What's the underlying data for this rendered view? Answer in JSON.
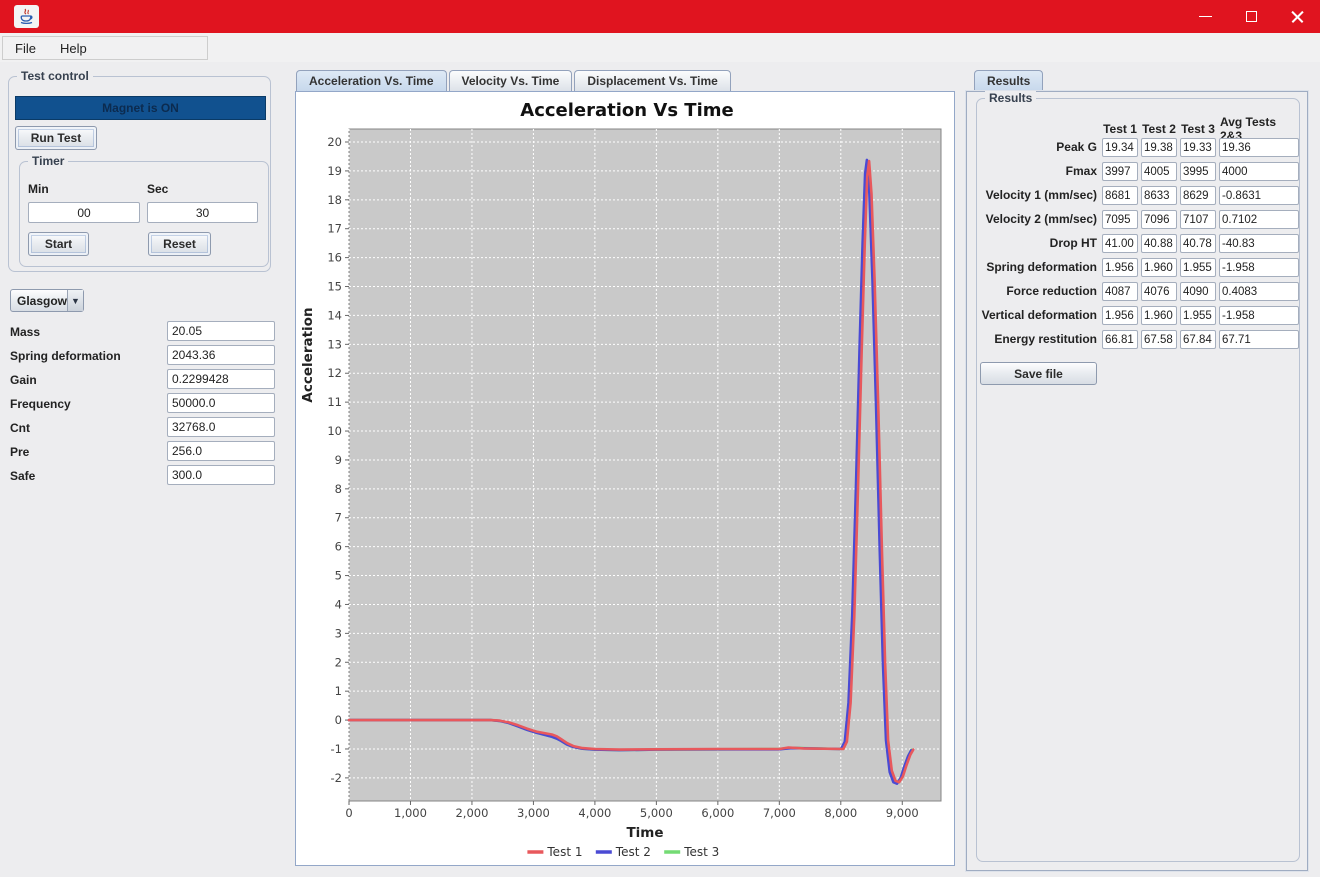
{
  "window": {
    "title": ""
  },
  "menu": {
    "items": [
      "File",
      "Help"
    ]
  },
  "icons": {
    "combo_arrow": "▼"
  },
  "colors": {
    "titlebar_red": "#E0141F",
    "magnet_blue": "#11518F",
    "plot_background": "#C9C9C9",
    "test1_red": "#E8585C",
    "test2_blue": "#4A4AD4",
    "test3_green": "#74DB74"
  },
  "test_control": {
    "title": "Test control",
    "magnet_button": "Magnet is ON",
    "run_test_button": "Run Test",
    "timer": {
      "title": "Timer",
      "min_label": "Min",
      "sec_label": "Sec",
      "min_value": "00",
      "sec_value": "30",
      "start_button": "Start",
      "reset_button": "Reset"
    }
  },
  "settings": {
    "preset_selected": "Glasgow",
    "fields": [
      {
        "label": "Mass",
        "value": "20.05"
      },
      {
        "label": "Spring deformation",
        "value": "2043.36"
      },
      {
        "label": "Gain",
        "value": "0.2299428"
      },
      {
        "label": "Frequency",
        "value": "50000.0"
      },
      {
        "label": "Cnt",
        "value": "32768.0"
      },
      {
        "label": "Pre",
        "value": "256.0"
      },
      {
        "label": "Safe",
        "value": "300.0"
      }
    ]
  },
  "chart_tabs": [
    "Acceleration Vs. Time",
    "Velocity Vs. Time",
    "Displacement Vs. Time"
  ],
  "results": {
    "tab_label": "Results",
    "group_title": "Results",
    "columns": [
      "Test 1",
      "Test 2",
      "Test 3",
      "Avg Tests 2&3"
    ],
    "rows": [
      {
        "label": "Peak G",
        "values": [
          "19.34",
          "19.38",
          "19.33",
          "19.36"
        ]
      },
      {
        "label": "Fmax",
        "values": [
          "3997",
          "4005",
          "3995",
          "4000"
        ]
      },
      {
        "label": "Velocity 1 (mm/sec)",
        "values": [
          "8681",
          "8633",
          "8629",
          "-0.8631"
        ]
      },
      {
        "label": "Velocity 2 (mm/sec)",
        "values": [
          "7095",
          "7096",
          "7107",
          "0.7102"
        ]
      },
      {
        "label": "Drop HT",
        "values": [
          "41.00",
          "40.88",
          "40.78",
          "-40.83"
        ]
      },
      {
        "label": "Spring deformation",
        "values": [
          "1.956",
          "1.960",
          "1.955",
          "-1.958"
        ]
      },
      {
        "label": "Force reduction",
        "values": [
          "4087",
          "4076",
          "4090",
          "0.4083"
        ]
      },
      {
        "label": "Vertical deformation",
        "values": [
          "1.956",
          "1.960",
          "1.955",
          "-1.958"
        ]
      },
      {
        "label": "Energy restitution",
        "values": [
          "66.81",
          "67.58",
          "67.84",
          "67.71"
        ]
      }
    ],
    "save_button": "Save file"
  },
  "chart_data": {
    "type": "line",
    "title": "Acceleration Vs Time",
    "xlabel": "Time",
    "ylabel": "Acceleration",
    "xlim": [
      0,
      9630
    ],
    "ylim": [
      -2.8,
      20.45
    ],
    "grid": true,
    "legend_position": "bottom",
    "plot_bg": "#C9C9C9",
    "x_ticks": [
      {
        "v": 0,
        "label": "0"
      },
      {
        "v": 1000,
        "label": "1,000"
      },
      {
        "v": 2000,
        "label": "2,000"
      },
      {
        "v": 3000,
        "label": "3,000"
      },
      {
        "v": 4000,
        "label": "4,000"
      },
      {
        "v": 5000,
        "label": "5,000"
      },
      {
        "v": 6000,
        "label": "6,000"
      },
      {
        "v": 7000,
        "label": "7,000"
      },
      {
        "v": 8000,
        "label": "8,000"
      },
      {
        "v": 9000,
        "label": "9,000"
      }
    ],
    "y_ticks": [
      {
        "v": -2,
        "label": "-2"
      },
      {
        "v": -1,
        "label": "-1"
      },
      {
        "v": 0,
        "label": "0"
      },
      {
        "v": 1,
        "label": "1"
      },
      {
        "v": 2,
        "label": "2"
      },
      {
        "v": 3,
        "label": "3"
      },
      {
        "v": 4,
        "label": "4"
      },
      {
        "v": 5,
        "label": "5"
      },
      {
        "v": 6,
        "label": "6"
      },
      {
        "v": 7,
        "label": "7"
      },
      {
        "v": 8,
        "label": "8"
      },
      {
        "v": 9,
        "label": "9"
      },
      {
        "v": 10,
        "label": "10"
      },
      {
        "v": 11,
        "label": "11"
      },
      {
        "v": 12,
        "label": "12"
      },
      {
        "v": 13,
        "label": "13"
      },
      {
        "v": 14,
        "label": "14"
      },
      {
        "v": 15,
        "label": "15"
      },
      {
        "v": 16,
        "label": "16"
      },
      {
        "v": 17,
        "label": "17"
      },
      {
        "v": 18,
        "label": "18"
      },
      {
        "v": 19,
        "label": "19"
      },
      {
        "v": 20,
        "label": "20"
      }
    ],
    "series": [
      {
        "name": "Test 1",
        "color": "#E8585C",
        "peak": 19.34,
        "points": [
          [
            0,
            0
          ],
          [
            2300,
            0
          ],
          [
            2450,
            -0.02
          ],
          [
            2600,
            -0.08
          ],
          [
            2750,
            -0.18
          ],
          [
            2900,
            -0.3
          ],
          [
            3050,
            -0.4
          ],
          [
            3200,
            -0.46
          ],
          [
            3300,
            -0.5
          ],
          [
            3380,
            -0.56
          ],
          [
            3450,
            -0.66
          ],
          [
            3550,
            -0.8
          ],
          [
            3650,
            -0.9
          ],
          [
            3800,
            -0.97
          ],
          [
            4000,
            -1
          ],
          [
            4400,
            -1.02
          ],
          [
            5000,
            -1.01
          ],
          [
            6000,
            -1
          ],
          [
            7000,
            -1
          ],
          [
            7150,
            -0.95
          ],
          [
            7400,
            -0.98
          ],
          [
            8040,
            -1
          ],
          [
            8100,
            -0.75
          ],
          [
            8160,
            0.6
          ],
          [
            8220,
            3.6
          ],
          [
            8280,
            8
          ],
          [
            8340,
            12.8
          ],
          [
            8390,
            16.5
          ],
          [
            8430,
            18.8
          ],
          [
            8460,
            19.34
          ],
          [
            8500,
            18.2
          ],
          [
            8550,
            15.2
          ],
          [
            8610,
            10.8
          ],
          [
            8670,
            5.8
          ],
          [
            8720,
            2
          ],
          [
            8770,
            -0.7
          ],
          [
            8830,
            -1.75
          ],
          [
            8890,
            -2.1
          ],
          [
            8950,
            -2.15
          ],
          [
            9010,
            -1.95
          ],
          [
            9070,
            -1.55
          ],
          [
            9130,
            -1.2
          ],
          [
            9180,
            -1.02
          ]
        ]
      },
      {
        "name": "Test 2",
        "color": "#4A4AD4",
        "peak": 19.38,
        "points": [
          [
            0,
            0
          ],
          [
            2300,
            0
          ],
          [
            2450,
            -0.03
          ],
          [
            2600,
            -0.1
          ],
          [
            2750,
            -0.22
          ],
          [
            2900,
            -0.34
          ],
          [
            3050,
            -0.44
          ],
          [
            3200,
            -0.52
          ],
          [
            3300,
            -0.58
          ],
          [
            3380,
            -0.64
          ],
          [
            3450,
            -0.72
          ],
          [
            3550,
            -0.85
          ],
          [
            3650,
            -0.93
          ],
          [
            3800,
            -0.99
          ],
          [
            4000,
            -1.02
          ],
          [
            4400,
            -1.04
          ],
          [
            5000,
            -1.02
          ],
          [
            6000,
            -1.01
          ],
          [
            7000,
            -1.01
          ],
          [
            7200,
            -0.97
          ],
          [
            8005,
            -1
          ],
          [
            8065,
            -0.75
          ],
          [
            8125,
            0.6
          ],
          [
            8185,
            3.6
          ],
          [
            8245,
            8
          ],
          [
            8305,
            12.8
          ],
          [
            8355,
            16.5
          ],
          [
            8395,
            18.9
          ],
          [
            8425,
            19.38
          ],
          [
            8465,
            18.2
          ],
          [
            8515,
            15.2
          ],
          [
            8575,
            10.8
          ],
          [
            8635,
            5.8
          ],
          [
            8685,
            2
          ],
          [
            8735,
            -0.7
          ],
          [
            8795,
            -1.8
          ],
          [
            8855,
            -2.15
          ],
          [
            8915,
            -2.2
          ],
          [
            8975,
            -2
          ],
          [
            9035,
            -1.6
          ],
          [
            9095,
            -1.25
          ],
          [
            9145,
            -1.05
          ]
        ]
      },
      {
        "name": "Test 3",
        "color": "#74DB74",
        "peak": 19.33,
        "points": [
          [
            0,
            0
          ],
          [
            2300,
            0
          ],
          [
            2450,
            -0.03
          ],
          [
            2600,
            -0.1
          ],
          [
            2750,
            -0.22
          ],
          [
            2900,
            -0.34
          ],
          [
            3050,
            -0.44
          ],
          [
            3200,
            -0.52
          ],
          [
            3300,
            -0.58
          ],
          [
            3380,
            -0.64
          ],
          [
            3450,
            -0.72
          ],
          [
            3550,
            -0.85
          ],
          [
            3650,
            -0.93
          ],
          [
            3800,
            -0.99
          ],
          [
            4000,
            -1.02
          ],
          [
            4400,
            -1.04
          ],
          [
            5000,
            -1.02
          ],
          [
            6000,
            -1.01
          ],
          [
            7000,
            -1.0
          ],
          [
            7200,
            -0.96
          ],
          [
            8010,
            -1
          ],
          [
            8070,
            -0.75
          ],
          [
            8130,
            0.6
          ],
          [
            8190,
            3.6
          ],
          [
            8250,
            8
          ],
          [
            8310,
            12.8
          ],
          [
            8360,
            16.5
          ],
          [
            8400,
            18.9
          ],
          [
            8430,
            19.33
          ],
          [
            8470,
            18.2
          ],
          [
            8520,
            15.2
          ],
          [
            8580,
            10.8
          ],
          [
            8640,
            5.8
          ],
          [
            8690,
            2
          ],
          [
            8740,
            -0.7
          ],
          [
            8800,
            -1.8
          ],
          [
            8860,
            -2.13
          ],
          [
            8920,
            -2.18
          ],
          [
            8980,
            -1.98
          ],
          [
            9040,
            -1.58
          ],
          [
            9100,
            -1.23
          ],
          [
            9150,
            -1.03
          ]
        ]
      }
    ]
  }
}
